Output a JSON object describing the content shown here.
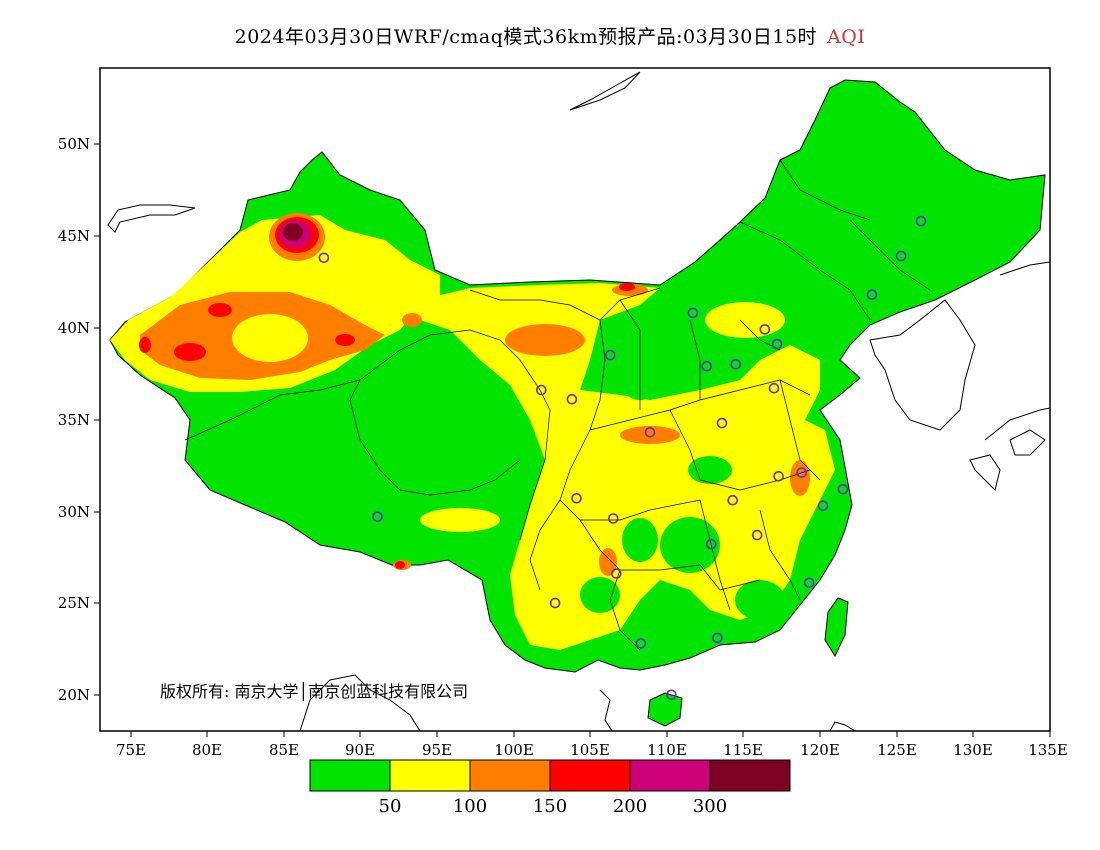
{
  "title": {
    "main": "2024年03月30日WRF/cmaq模式36km预报产品:03月30日15时",
    "product": "AQI"
  },
  "axes": {
    "lat_labels": [
      "50N",
      "45N",
      "40N",
      "35N",
      "30N",
      "25N",
      "20N"
    ],
    "lon_labels": [
      "75E",
      "80E",
      "85E",
      "90E",
      "95E",
      "100E",
      "105E",
      "110E",
      "115E",
      "120E",
      "125E",
      "130E",
      "135E"
    ]
  },
  "copyright": "版权所有: 南京大学│南京创蓝科技有限公司",
  "legend": {
    "colors": [
      "#00e400",
      "#ffff00",
      "#ff7e00",
      "#ff0000",
      "#cc0077",
      "#7e0023"
    ],
    "thresholds": [
      "50",
      "100",
      "150",
      "200",
      "300"
    ]
  },
  "stations": [
    {
      "lon": 87.6,
      "lat": 43.8
    },
    {
      "lon": 91.1,
      "lat": 29.7
    },
    {
      "lon": 101.8,
      "lat": 36.6
    },
    {
      "lon": 103.8,
      "lat": 36.1
    },
    {
      "lon": 106.3,
      "lat": 38.5
    },
    {
      "lon": 111.7,
      "lat": 40.8
    },
    {
      "lon": 112.6,
      "lat": 37.9
    },
    {
      "lon": 114.5,
      "lat": 38.0
    },
    {
      "lon": 116.4,
      "lat": 39.9
    },
    {
      "lon": 117.2,
      "lat": 39.1
    },
    {
      "lon": 117.0,
      "lat": 36.7
    },
    {
      "lon": 113.6,
      "lat": 34.8
    },
    {
      "lon": 108.9,
      "lat": 34.3
    },
    {
      "lon": 104.1,
      "lat": 30.7
    },
    {
      "lon": 106.5,
      "lat": 29.6
    },
    {
      "lon": 106.7,
      "lat": 26.6
    },
    {
      "lon": 102.7,
      "lat": 25.0
    },
    {
      "lon": 108.3,
      "lat": 22.8
    },
    {
      "lon": 113.3,
      "lat": 23.1
    },
    {
      "lon": 110.3,
      "lat": 20.0
    },
    {
      "lon": 112.9,
      "lat": 28.2
    },
    {
      "lon": 114.3,
      "lat": 30.6
    },
    {
      "lon": 115.9,
      "lat": 28.7
    },
    {
      "lon": 117.3,
      "lat": 31.9
    },
    {
      "lon": 118.8,
      "lat": 32.1
    },
    {
      "lon": 120.2,
      "lat": 30.3
    },
    {
      "lon": 121.5,
      "lat": 31.2
    },
    {
      "lon": 119.3,
      "lat": 26.1
    },
    {
      "lon": 123.4,
      "lat": 41.8
    },
    {
      "lon": 125.3,
      "lat": 43.9
    },
    {
      "lon": 126.6,
      "lat": 45.8
    }
  ]
}
